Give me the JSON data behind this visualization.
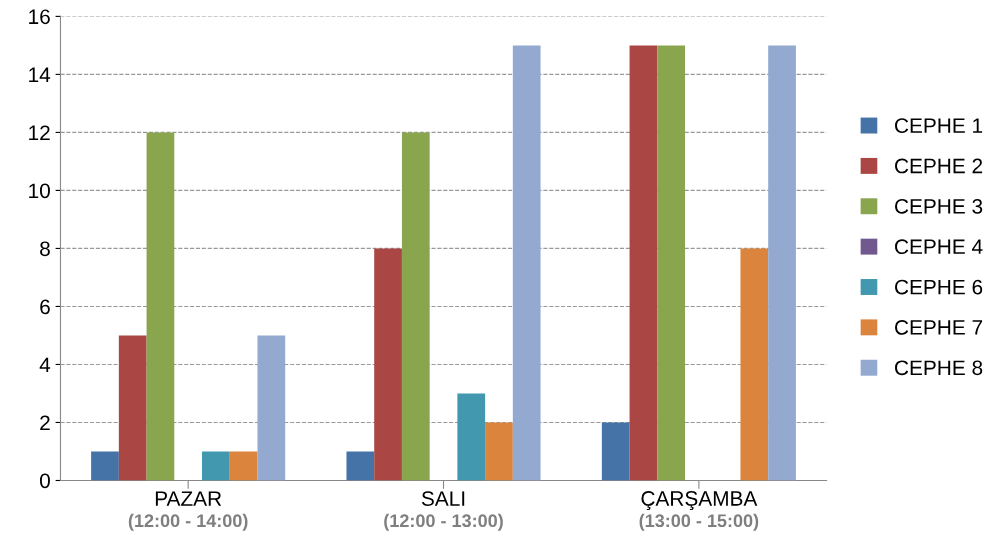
{
  "chart_data": {
    "type": "bar",
    "categories": [
      "PAZAR\n(12:00 - 14:00)",
      "SALI\n(12:00 - 13:00)",
      "ÇARŞAMBA\n(13:00 - 15:00)"
    ],
    "series": [
      {
        "name": "CEPHE 1",
        "color": "#4572a7",
        "values": [
          1,
          1,
          2
        ]
      },
      {
        "name": "CEPHE 2",
        "color": "#aa4643",
        "values": [
          5,
          8,
          15
        ]
      },
      {
        "name": "CEPHE 3",
        "color": "#89a54e",
        "values": [
          12,
          12,
          15
        ]
      },
      {
        "name": "CEPHE 4",
        "color": "#71588f",
        "values": [
          0,
          0,
          0
        ]
      },
      {
        "name": "CEPHE 6",
        "color": "#4198af",
        "values": [
          1,
          3,
          0
        ]
      },
      {
        "name": "CEPHE 7",
        "color": "#db843d",
        "values": [
          1,
          2,
          8
        ]
      },
      {
        "name": "CEPHE 8",
        "color": "#93a9cf",
        "values": [
          5,
          15,
          15
        ]
      }
    ],
    "ylim": [
      0,
      16
    ],
    "yticks": [
      0,
      2,
      4,
      6,
      8,
      10,
      12,
      14,
      16
    ],
    "grid": "y",
    "legend": "right"
  }
}
